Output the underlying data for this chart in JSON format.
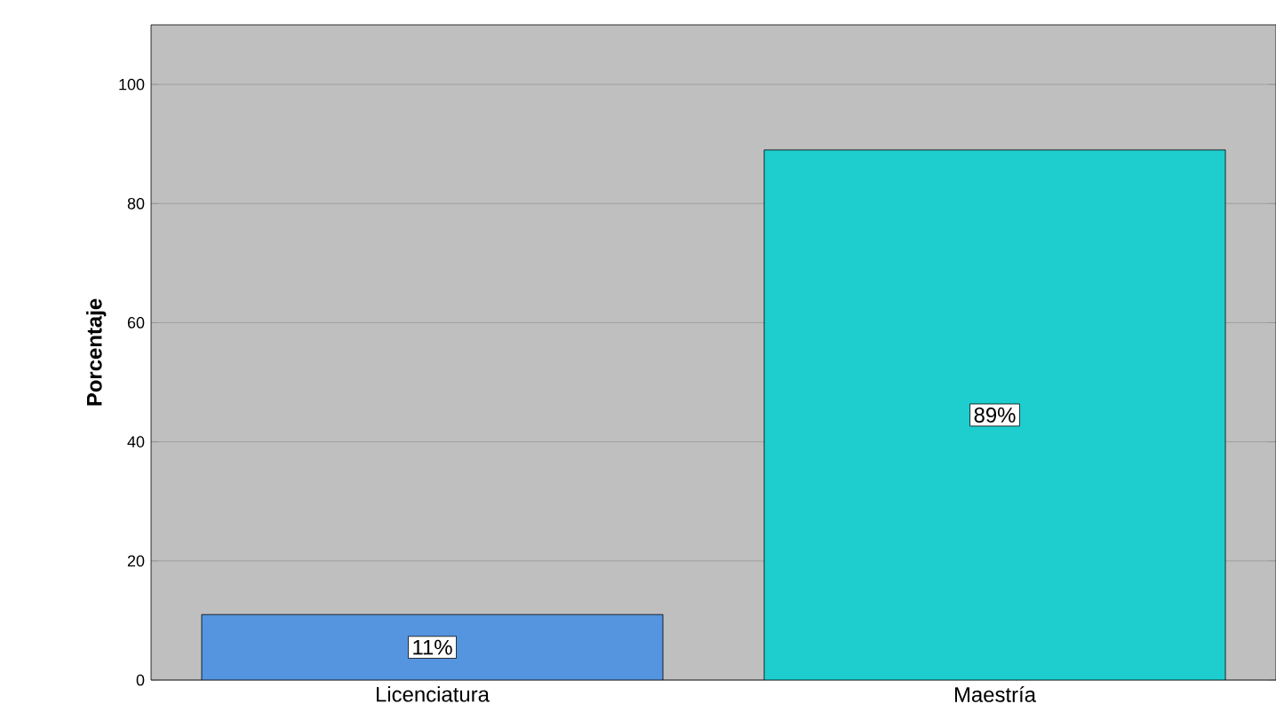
{
  "chart_data": {
    "type": "bar",
    "ylabel": "Porcentaje",
    "categories": [
      "Licenciatura",
      "Maestría"
    ],
    "values": [
      11,
      89
    ],
    "colors": [
      "#5595e0",
      "#1ecdcd"
    ],
    "value_labels": [
      "11%",
      "89%"
    ],
    "ylim": [
      0,
      110
    ],
    "yticks": [
      0,
      20,
      40,
      60,
      80,
      100
    ],
    "grid": "y"
  }
}
